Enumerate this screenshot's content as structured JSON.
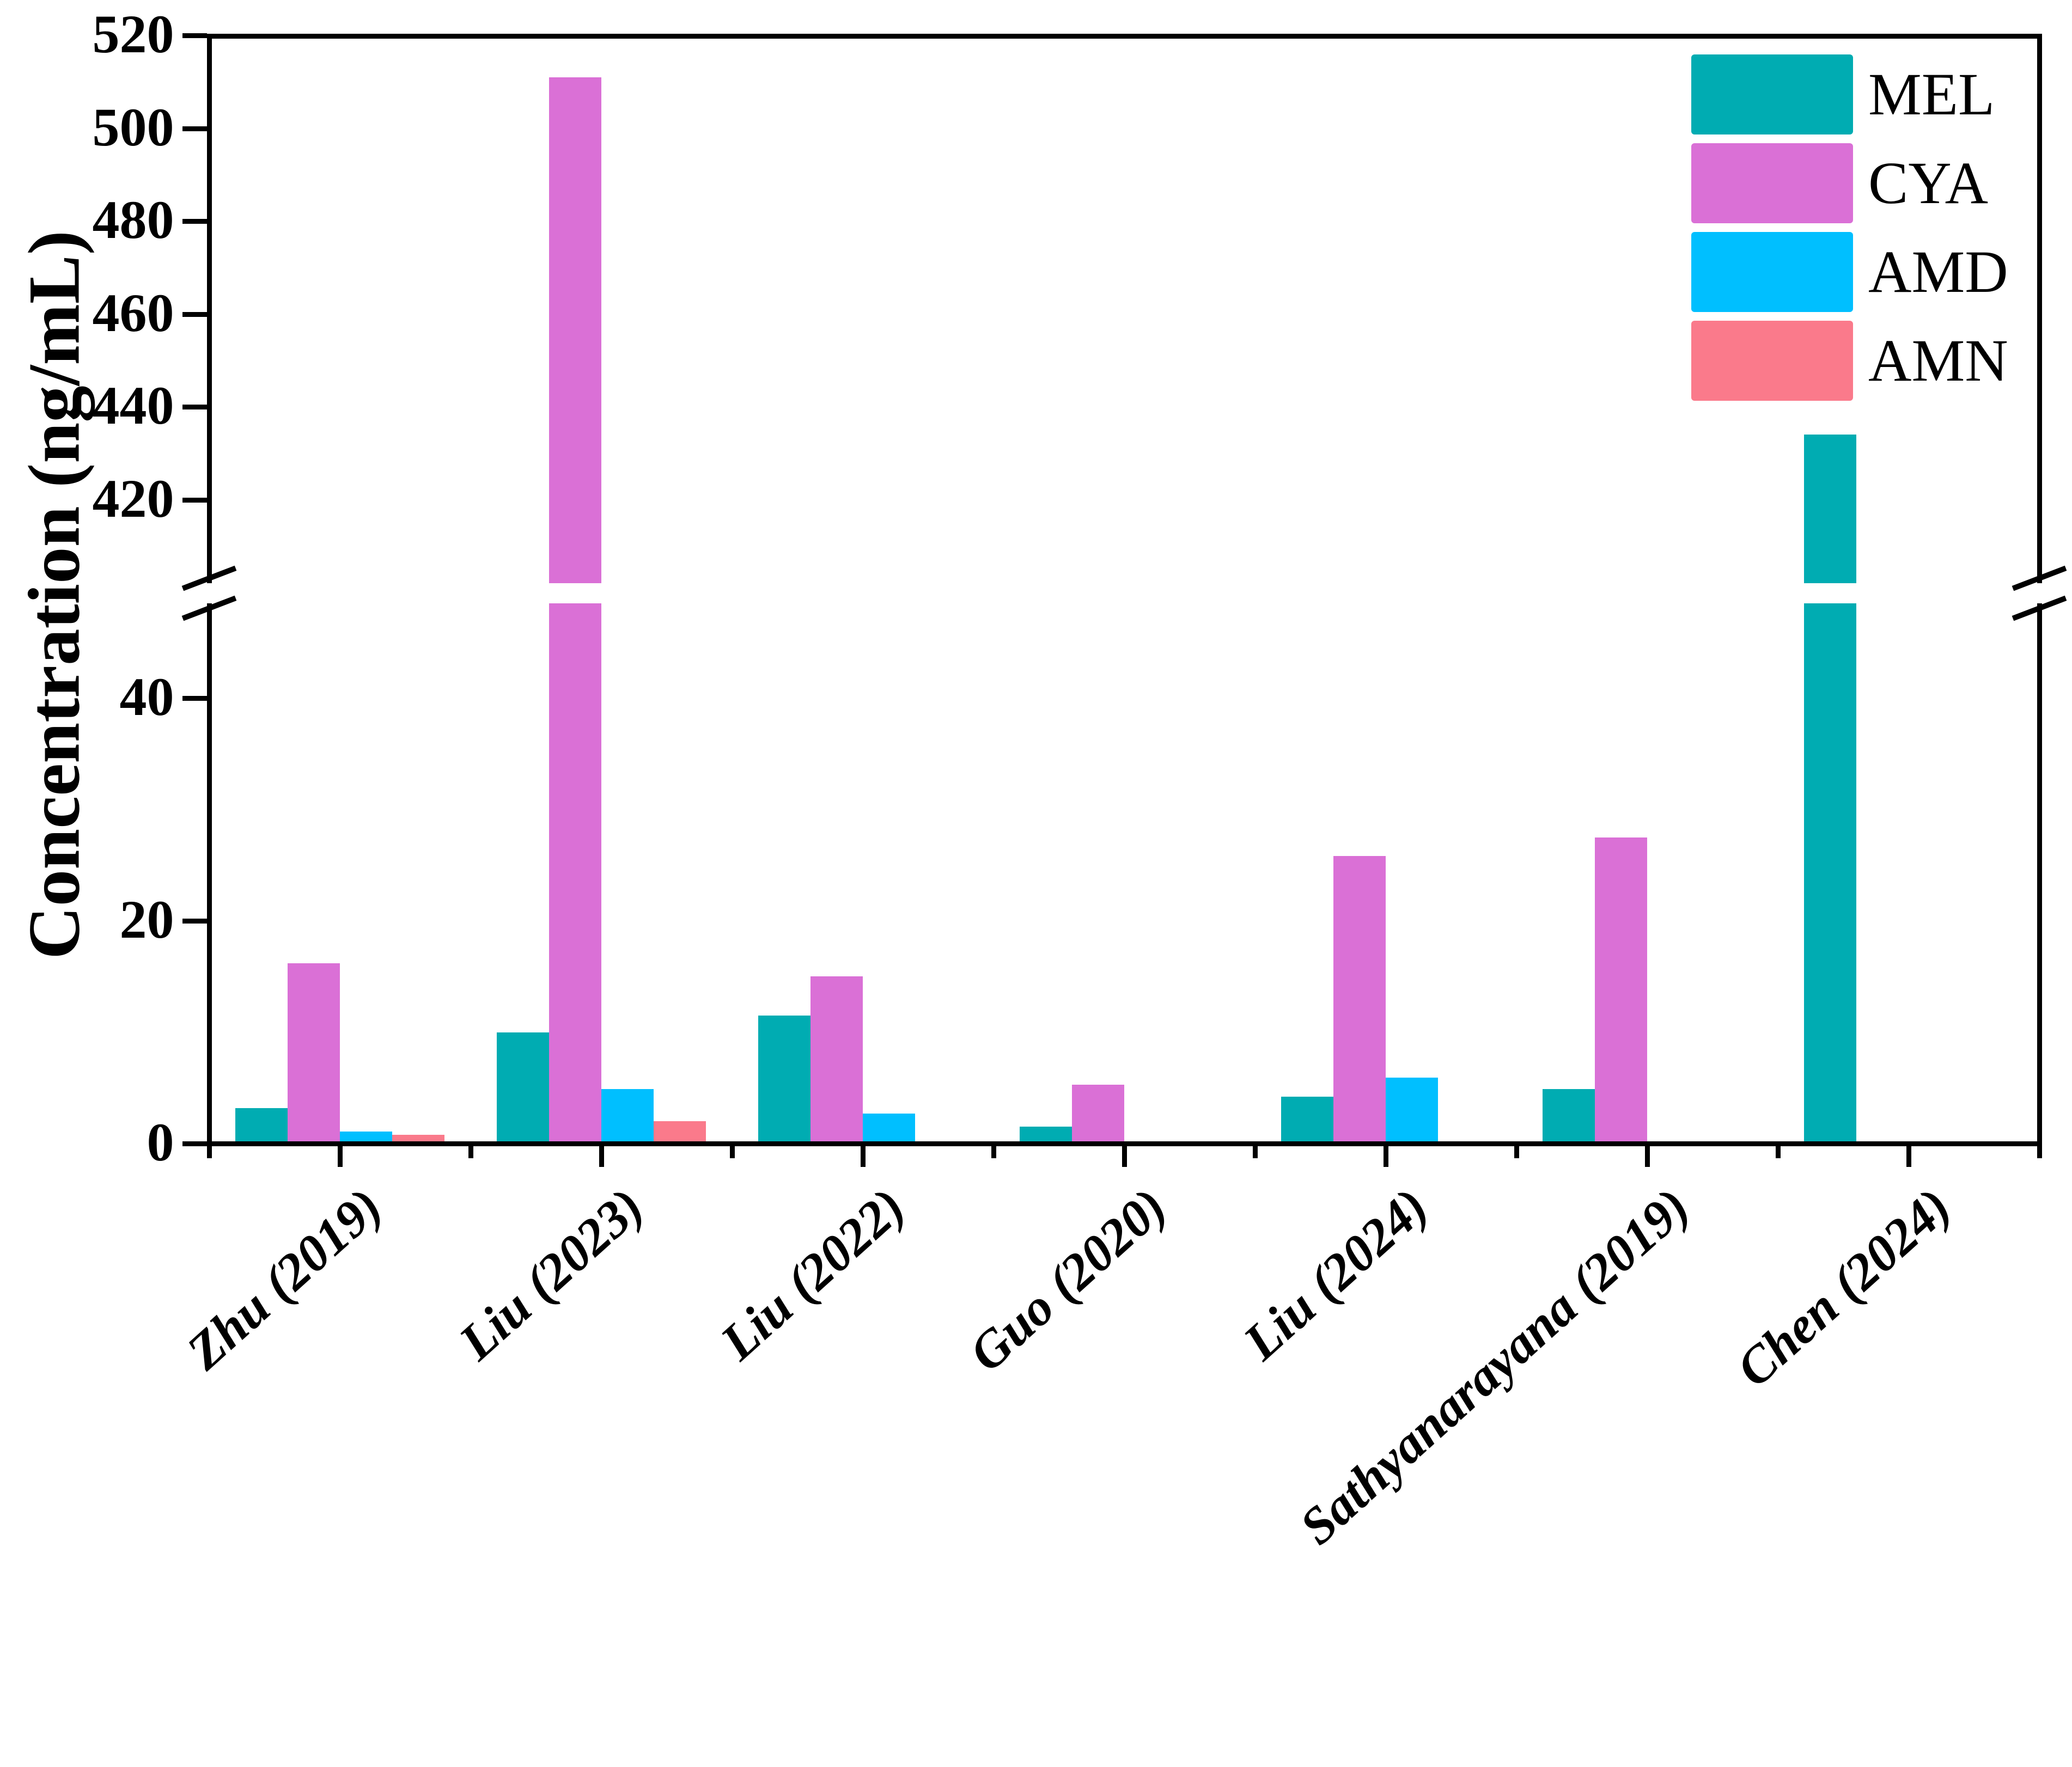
{
  "figure": {
    "ylabel": "Concentration (ng/mL)"
  },
  "chart_data": {
    "type": "bar",
    "title": "",
    "xlabel": "",
    "ylabel": "Concentration (ng/mL)",
    "categories": [
      "Zhu (2019)",
      "Liu (2023)",
      "Liu (2022)",
      "Guo (2020)",
      "Liu (2024)",
      "Sathyanarayana (2019)",
      "Chen (2024)"
    ],
    "series": [
      {
        "name": "MEL",
        "color": "#00ACB2",
        "values": [
          3.2,
          10,
          11.5,
          1.5,
          4.2,
          4.9,
          434
        ]
      },
      {
        "name": "CYA",
        "color": "#DA70D6",
        "values": [
          16.2,
          511,
          15,
          5.3,
          25.8,
          27.5,
          null
        ]
      },
      {
        "name": "AMD",
        "color": "#00BFFF",
        "values": [
          1.1,
          4.9,
          2.7,
          null,
          5.9,
          null,
          null
        ]
      },
      {
        "name": "AMN",
        "color": "#FA7A8B",
        "values": [
          0.8,
          2.0,
          null,
          null,
          null,
          null,
          null
        ]
      }
    ],
    "axis_break": {
      "lower_segment_max": 48,
      "upper_segment_min": 402,
      "upper_segment_max": 520
    },
    "yticks_lower": [
      0,
      20,
      40
    ],
    "yticks_upper": [
      420,
      440,
      460,
      480,
      500,
      520
    ],
    "grid": false,
    "legend_position": "top-right",
    "legend_items": [
      {
        "label": "MEL",
        "color": "#00ACB2"
      },
      {
        "label": "CYA",
        "color": "#DA70D6"
      },
      {
        "label": "AMD",
        "color": "#00BFFF"
      },
      {
        "label": "AMN",
        "color": "#FA7A8B"
      }
    ]
  }
}
